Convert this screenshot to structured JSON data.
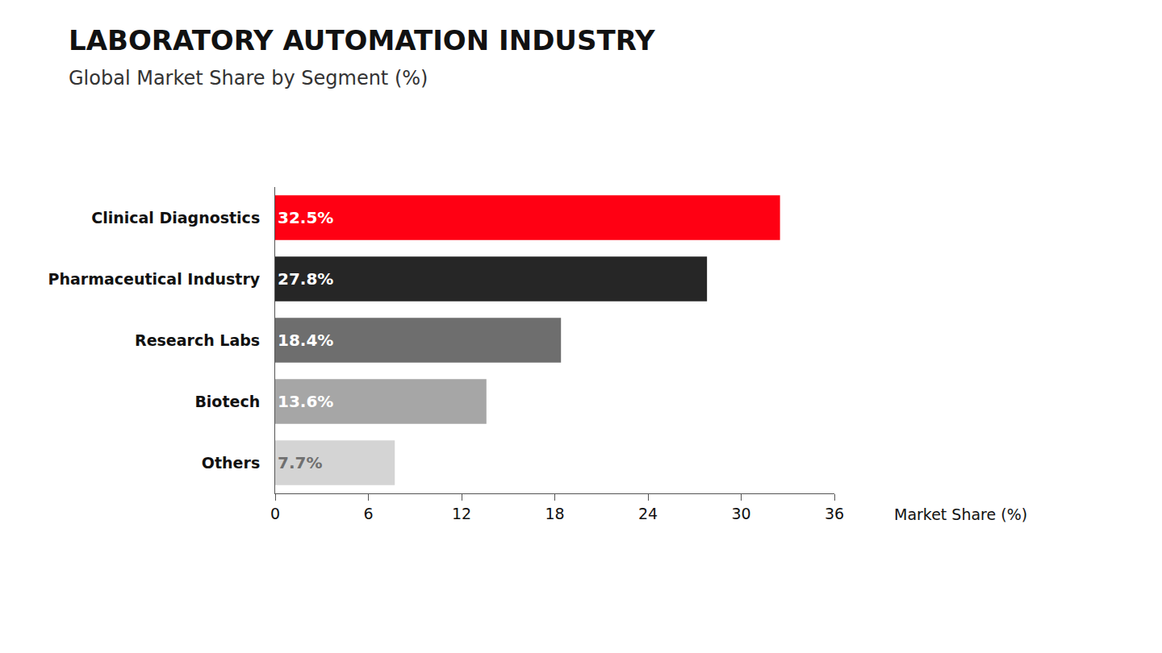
{
  "chart_data": {
    "type": "bar",
    "title": "LABORATORY AUTOMATION INDUSTRY",
    "subtitle": "Global Market Share by Segment (%)",
    "xlabel": "Market Share (%)",
    "orientation": "horizontal",
    "categories": [
      "Clinical Diagnostics",
      "Pharmaceutical Industry",
      "Research Labs",
      "Biotech",
      "Others"
    ],
    "values": [
      32.5,
      27.8,
      18.4,
      13.6,
      7.7
    ],
    "value_labels": [
      "32.5%",
      "27.8%",
      "18.4%",
      "13.6%",
      "7.7%"
    ],
    "colors": [
      "#ff0013",
      "#262626",
      "#6e6e6e",
      "#a6a6a6",
      "#d4d4d4"
    ],
    "data_labels": true,
    "xlim": [
      0,
      36
    ],
    "xticks": [
      0,
      6,
      12,
      18,
      24,
      30,
      36
    ],
    "grid": false
  }
}
